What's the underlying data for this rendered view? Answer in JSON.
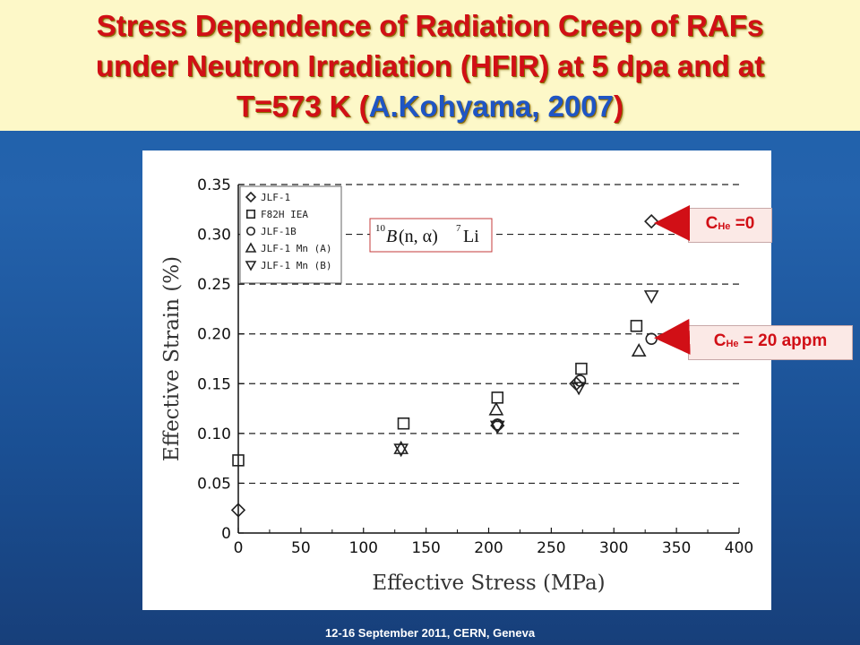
{
  "slide": {
    "title_line1": "Stress Dependence of Radiation Creep of RAFs",
    "title_line2": "under Neutron Irradiation (HFIR) at 5 dpa  and at",
    "title_line3_a": "T=573 K (",
    "title_line3_b": "A.Kohyama,  2007",
    "title_line3_c": ")",
    "footer": "12-16  September 2011, CERN, Geneva"
  },
  "callouts": [
    {
      "c": "C",
      "sub": "He",
      "value": " =0"
    },
    {
      "c": "C",
      "sub": "He",
      "value": " = 20 appm"
    }
  ],
  "reaction": {
    "mass10": "10",
    "b": "B",
    "mid": "(n, α)",
    "mass7": "7",
    "li": "Li"
  },
  "colors": {
    "title": "#d10f16",
    "author": "#1f55c4",
    "callout_text": "#d10f16",
    "arrow": "#d10f16"
  },
  "chart_data": {
    "type": "scatter",
    "xlabel": "Effective Stress (MPa)",
    "ylabel": "Effective Strain (%)",
    "xlim": [
      0,
      400
    ],
    "ylim": [
      0,
      0.35
    ],
    "x_ticks": [
      "0",
      "50",
      "100",
      "150",
      "200",
      "250",
      "300",
      "350",
      "400"
    ],
    "y_ticks": [
      "0",
      "0.05",
      "0.10",
      "0.15",
      "0.20",
      "0.25",
      "0.30",
      "0.35"
    ],
    "grid": "horizontal dashed",
    "legend_placement": "top-left",
    "series": [
      {
        "name": "JLF-1",
        "marker": "diamond",
        "points": [
          [
            0,
            0.023
          ],
          [
            207,
            0.108
          ],
          [
            270,
            0.15
          ],
          [
            330,
            0.313
          ]
        ]
      },
      {
        "name": "F82H IEA",
        "marker": "square",
        "points": [
          [
            0,
            0.073
          ],
          [
            132,
            0.11
          ],
          [
            207,
            0.136
          ],
          [
            274,
            0.165
          ],
          [
            318,
            0.208
          ]
        ]
      },
      {
        "name": "JLF-1B",
        "marker": "circle",
        "points": [
          [
            207,
            0.109
          ],
          [
            273,
            0.153
          ],
          [
            330,
            0.195
          ]
        ]
      },
      {
        "name": "JLF-1 Mn (A)",
        "marker": "triangle-up",
        "points": [
          [
            130,
            0.085
          ],
          [
            206,
            0.124
          ],
          [
            320,
            0.183
          ]
        ]
      },
      {
        "name": "JLF-1 Mn (B)",
        "marker": "triangle-down",
        "points": [
          [
            130,
            0.084
          ],
          [
            207,
            0.107
          ],
          [
            272,
            0.146
          ],
          [
            330,
            0.238
          ]
        ]
      }
    ]
  }
}
